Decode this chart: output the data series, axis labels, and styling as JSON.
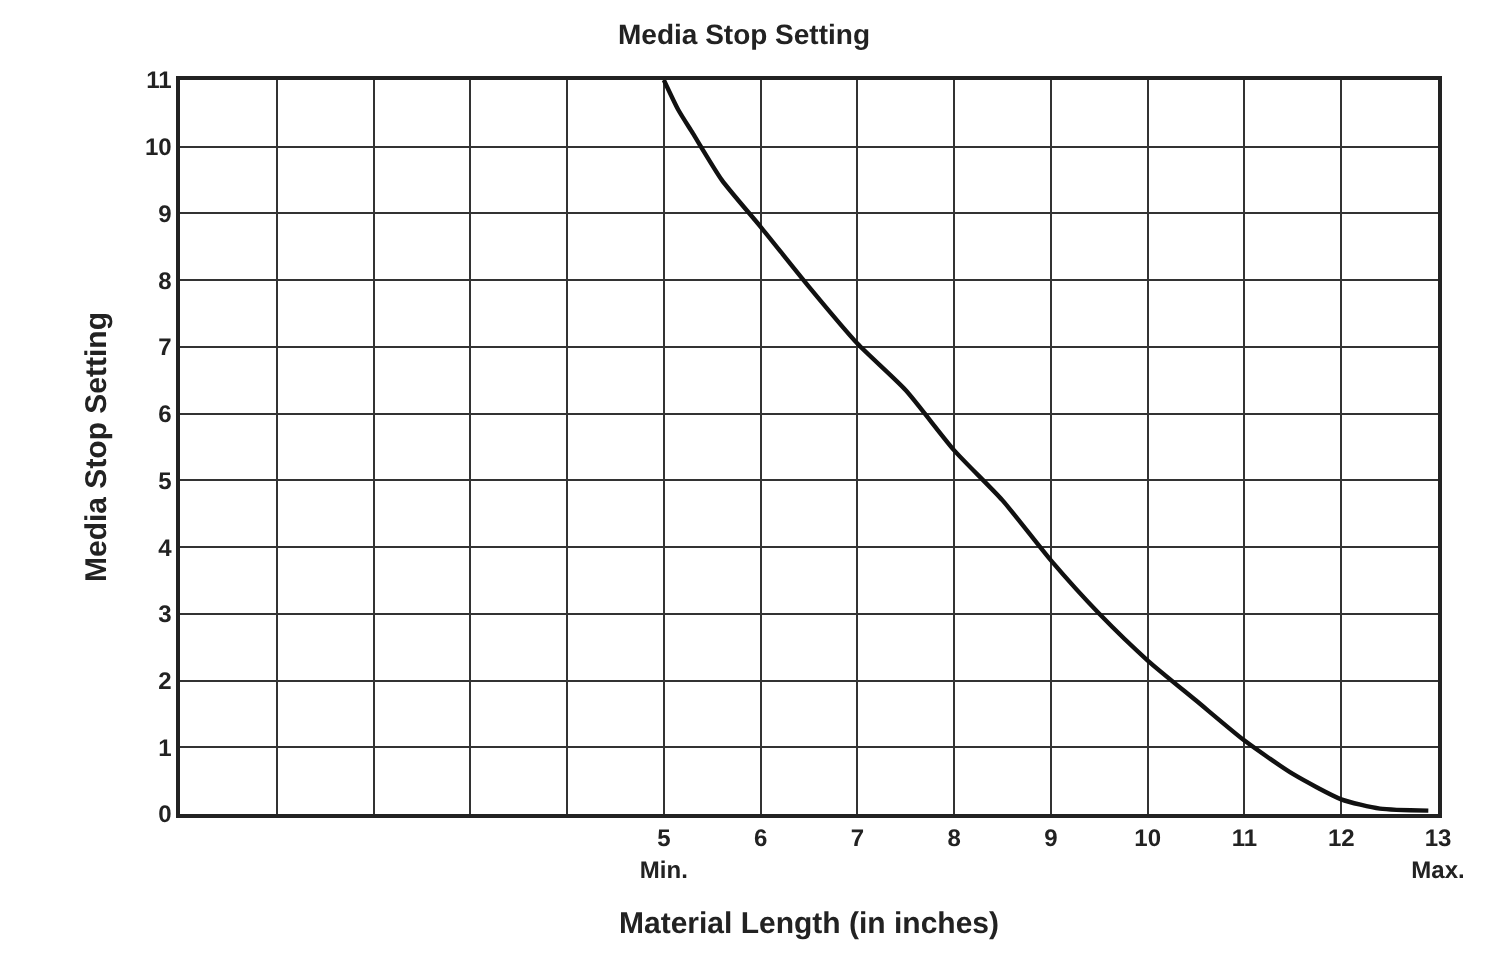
{
  "chart_data": {
    "type": "line",
    "title": "Media Stop Setting",
    "xlabel": "Material Length (in inches)",
    "ylabel": "Media Stop Setting",
    "series": [
      {
        "color": "#111111",
        "x": [
          5,
          5.15,
          5.3,
          5.6,
          6,
          6.5,
          7,
          7.5,
          8,
          8.5,
          9,
          9.5,
          10,
          10.5,
          11,
          11.5,
          12,
          12.4,
          12.9
        ],
        "values": [
          11,
          10.55,
          10.2,
          9.5,
          8.8,
          7.9,
          7.05,
          6.35,
          5.45,
          4.7,
          3.8,
          3.0,
          2.3,
          1.7,
          1.1,
          0.6,
          0.22,
          0.08,
          0.05
        ]
      }
    ],
    "xlim": [
      0,
      13
    ],
    "ylim": [
      0,
      11
    ],
    "xticks": [
      {
        "value": 0,
        "label": null
      },
      {
        "value": 1,
        "label": null
      },
      {
        "value": 2,
        "label": null
      },
      {
        "value": 3,
        "label": null
      },
      {
        "value": 4,
        "label": null
      },
      {
        "value": 5,
        "label": "5\nMin."
      },
      6,
      7,
      8,
      9,
      10,
      11,
      12,
      {
        "value": 13,
        "label": "13\nMax."
      }
    ],
    "yticks": [
      0,
      1,
      2,
      3,
      4,
      5,
      6,
      7,
      8,
      9,
      10,
      11
    ],
    "grid": true,
    "legend": false,
    "marker": "none",
    "line_style": "solid"
  }
}
